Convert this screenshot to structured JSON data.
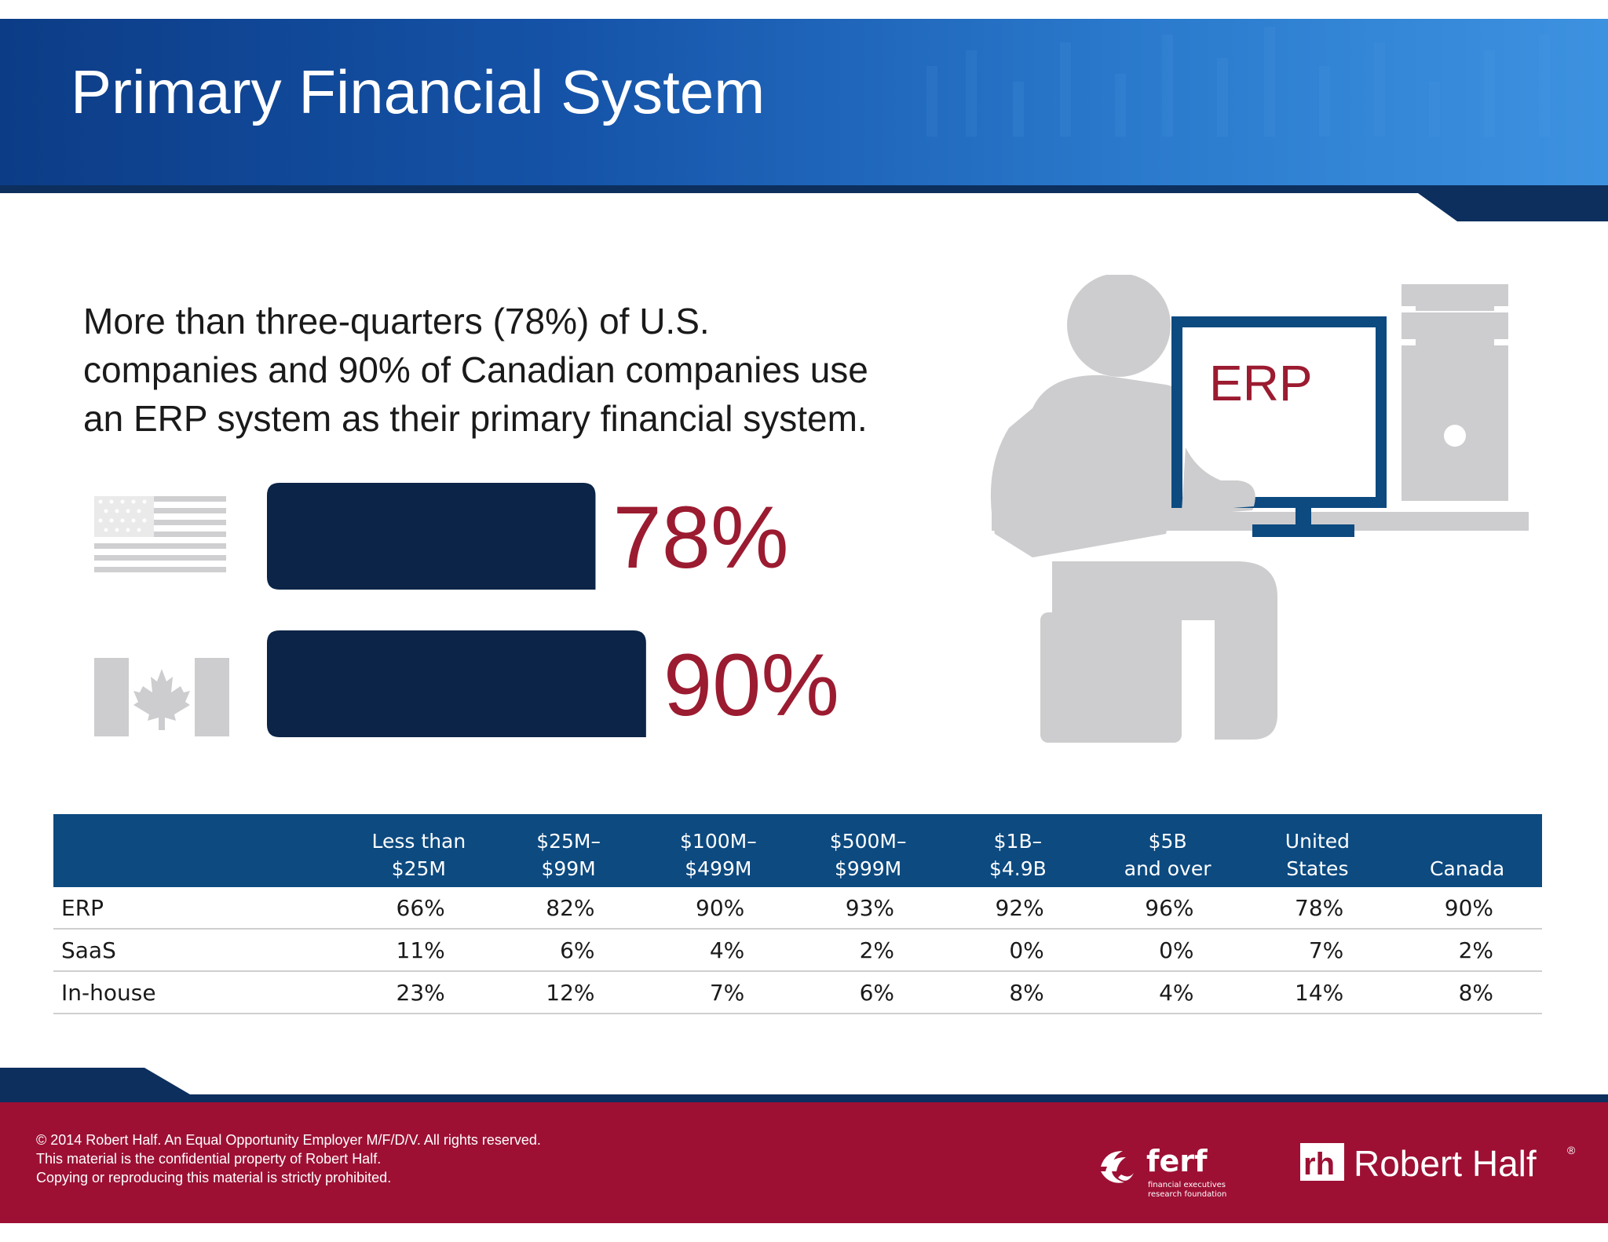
{
  "header": {
    "title": "Primary Financial System"
  },
  "headline": {
    "lines": [
      "More than three-quarters (78%) of U.S.",
      "companies and 90% of Canadian companies use",
      "an ERP system as their primary financial system."
    ]
  },
  "illustration": {
    "screen_label": "ERP",
    "icon": "person-at-computer-icon"
  },
  "chart_data": [
    {
      "type": "bar",
      "orientation": "horizontal",
      "categories": [
        "United States",
        "Canada"
      ],
      "category_icons": [
        "us-flag-icon",
        "canada-flag-icon"
      ],
      "values": [
        78,
        90
      ],
      "value_labels": [
        "78%",
        "90%"
      ],
      "xlim": [
        0,
        100
      ],
      "bar_color": "#0b2447",
      "label_color": "#9b1b30",
      "grid": false
    },
    {
      "type": "table",
      "columns": [
        [
          "Less than",
          "$25M"
        ],
        [
          "$25M–",
          "$99M"
        ],
        [
          "$100M–",
          "$499M"
        ],
        [
          "$500M–",
          "$999M"
        ],
        [
          "$1B–",
          "$4.9B"
        ],
        [
          "$5B",
          "and over"
        ],
        [
          "United",
          "States"
        ],
        [
          "",
          "Canada"
        ]
      ],
      "rows": [
        {
          "label": "ERP",
          "values": [
            "66%",
            "82%",
            "90%",
            "93%",
            "92%",
            "96%",
            "78%",
            "90%"
          ]
        },
        {
          "label": "SaaS",
          "values": [
            "11%",
            "6%",
            "4%",
            "2%",
            "0%",
            "0%",
            "7%",
            "2%"
          ]
        },
        {
          "label": "In-house",
          "values": [
            "23%",
            "12%",
            "7%",
            "6%",
            "8%",
            "4%",
            "14%",
            "8%"
          ]
        }
      ],
      "header_color": "#0c4a80"
    }
  ],
  "footer": {
    "copyright": [
      "© 2014 Robert Half. An Equal Opportunity Employer M/F/D/V. All rights reserved.",
      "This material is the confidential property of Robert Half.",
      "Copying or reproducing this material is strictly prohibited."
    ],
    "ferf_logo": {
      "name": "ferf",
      "tagline": [
        "financial executives",
        "research foundation"
      ]
    },
    "rh_logo": {
      "mark": "rh",
      "name": "Robert Half",
      "registered": "®"
    },
    "background_color": "#9d1034"
  },
  "colors": {
    "header_blue": "#1553a8",
    "dark_navy": "#0b2447",
    "accent_red": "#9b1b30",
    "icon_gray": "#cdcdcf"
  }
}
